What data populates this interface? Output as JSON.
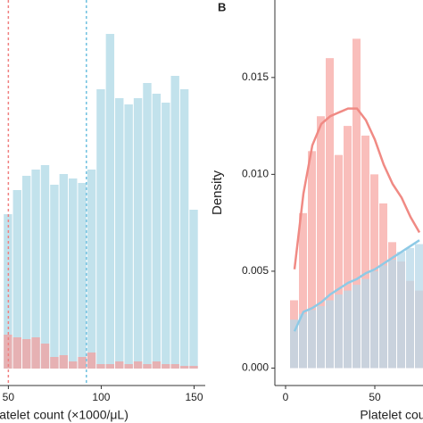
{
  "chart_data": [
    {
      "type": "histogram",
      "x_label": "latelet count (×1000/μL)",
      "bins": [
        47.5,
        52.5,
        57.5,
        62.5,
        67.5,
        72.5,
        77.5,
        82.5,
        87.5,
        92.5,
        97.5,
        102.5,
        107.5,
        112.5,
        117.5,
        122.5,
        127.5,
        132.5,
        137.5,
        142.5,
        147.5,
        152.5
      ],
      "series": [
        {
          "color": "#add8e6",
          "values": [
            173,
            200,
            216,
            223,
            228,
            206,
            218,
            213,
            208,
            223,
            313,
            375,
            303,
            296,
            303,
            320,
            308,
            298,
            328,
            313,
            178
          ]
        },
        {
          "color": "#f2a0a0",
          "values": [
            38,
            35,
            33,
            35,
            28,
            13,
            15,
            8,
            13,
            18,
            5,
            5,
            8,
            5,
            8,
            5,
            8,
            5,
            5,
            3,
            3
          ]
        }
      ],
      "vlines": [
        {
          "x": 50,
          "color": "#f08080"
        },
        {
          "x": 92,
          "color": "#6ec0e0"
        }
      ],
      "xlim": [
        45.5,
        156
      ],
      "ylim": [
        -19,
        413
      ],
      "xticks": [
        50,
        100,
        150
      ]
    },
    {
      "type": "histogram",
      "panel_label": "B",
      "x_label": "Platelet cou",
      "y_label": "Density",
      "bins": [
        2.5,
        7.5,
        12.5,
        17.5,
        22.5,
        27.5,
        32.5,
        37.5,
        42.5,
        47.5,
        52.5,
        57.5,
        62.5,
        67.5,
        72.5,
        77.5
      ],
      "series": [
        {
          "color": "#f7a8a4",
          "values": [
            0.0035,
            0.008,
            0.0112,
            0.013,
            0.016,
            0.011,
            0.0125,
            0.017,
            0.012,
            0.01,
            0.0085,
            0.0065,
            0.0055,
            0.0045,
            0.004
          ]
        },
        {
          "color": "#b8d8e8",
          "values": [
            0.0025,
            0.0028,
            0.003,
            0.0032,
            0.0035,
            0.0038,
            0.004,
            0.0043,
            0.0046,
            0.005,
            0.0053,
            0.0056,
            0.006,
            0.0062,
            0.0064
          ]
        }
      ],
      "lines": [
        {
          "color": "#f08a84",
          "x": [
            5,
            10,
            15,
            20,
            25,
            30,
            35,
            40,
            45,
            50,
            55,
            60,
            65,
            70,
            75
          ],
          "values": [
            0.0051,
            0.009,
            0.0115,
            0.0126,
            0.013,
            0.0132,
            0.0134,
            0.0134,
            0.0128,
            0.0118,
            0.0105,
            0.0095,
            0.0088,
            0.0078,
            0.007
          ]
        },
        {
          "color": "#8ecae6",
          "x": [
            5,
            10,
            15,
            20,
            25,
            30,
            35,
            40,
            45,
            50,
            55,
            60,
            65,
            70,
            75
          ],
          "values": [
            0.0019,
            0.0029,
            0.0031,
            0.0034,
            0.0038,
            0.0041,
            0.0044,
            0.0046,
            0.0049,
            0.0051,
            0.0054,
            0.0057,
            0.006,
            0.0063,
            0.0066
          ]
        }
      ],
      "xlim": [
        -6,
        77
      ],
      "ylim": [
        -0.0009,
        0.019
      ],
      "xticks": [
        0,
        50
      ],
      "yticks": [
        {
          "value": 0,
          "label": "0.000"
        },
        {
          "value": 0.005,
          "label": "0.005"
        },
        {
          "value": 0.01,
          "label": "0.010"
        },
        {
          "value": 0.015,
          "label": "0.015"
        }
      ]
    }
  ]
}
